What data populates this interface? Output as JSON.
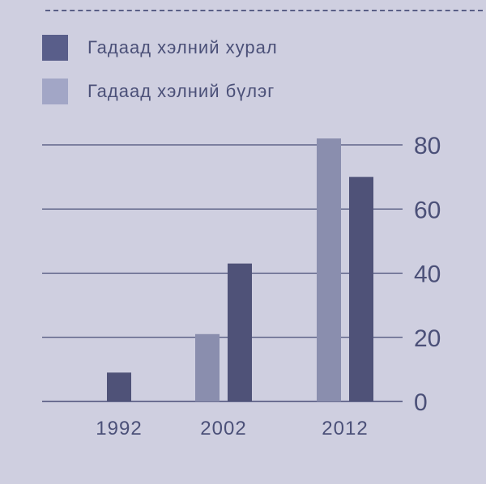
{
  "colors": {
    "background": "#cfcfe0",
    "grid": "#4a4f78",
    "text": "#4b5078",
    "series_khural": "#4f5278",
    "series_buleg": "#8a8eae",
    "legend_khural": "#595e8a",
    "legend_buleg": "#a2a6c6"
  },
  "legend": [
    {
      "label": "Гадаад хэлний хурал",
      "color": "#595e8a"
    },
    {
      "label": "Гадаад хэлний бүлэг",
      "color": "#a2a6c6"
    }
  ],
  "chart_data": {
    "type": "bar",
    "title": "",
    "xlabel": "",
    "ylabel": "",
    "categories": [
      "1992",
      "2002",
      "2012"
    ],
    "series": [
      {
        "name": "Гадаад хэлний бүлэг",
        "values": [
          0,
          21,
          82
        ]
      },
      {
        "name": "Гадаад хэлний хурал",
        "values": [
          9,
          43,
          70
        ]
      }
    ],
    "ylim": [
      0,
      80
    ],
    "yticks": [
      0,
      20,
      40,
      60,
      80
    ],
    "y_axis_position": "right",
    "grid": true,
    "legend_position": "top-left"
  }
}
